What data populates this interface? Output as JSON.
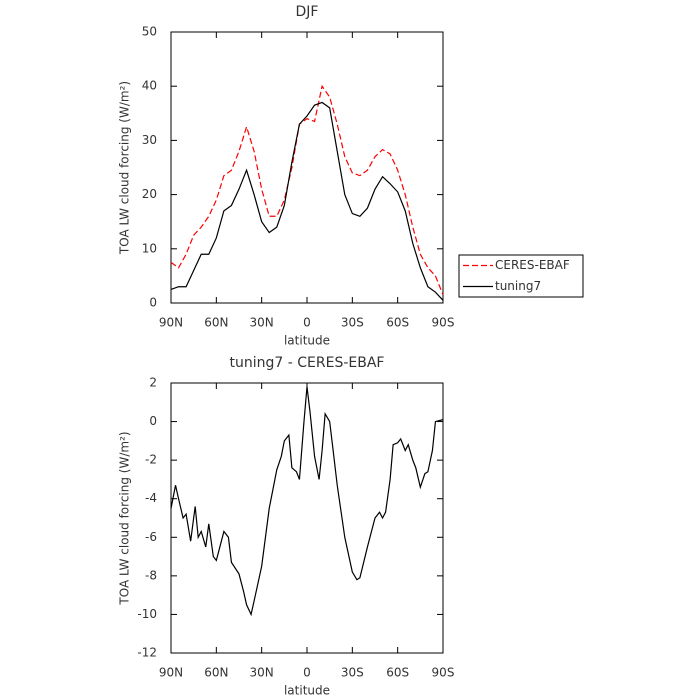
{
  "chart_data": [
    {
      "type": "line",
      "title": "DJF",
      "xlabel": "latitude",
      "ylabel": "TOA LW cloud forcing (W/m²)",
      "x": [
        90,
        85,
        80,
        75,
        70,
        65,
        60,
        55,
        50,
        45,
        40,
        35,
        30,
        25,
        20,
        15,
        10,
        5,
        0,
        -5,
        -10,
        -15,
        -20,
        -25,
        -30,
        -35,
        -40,
        -45,
        -50,
        -55,
        -60,
        -65,
        -70,
        -75,
        -80,
        -85,
        -90
      ],
      "series": [
        {
          "name": "CERES-EBAF",
          "color": "#ff0000",
          "linestyle": "dashed",
          "values": [
            7.5,
            6.5,
            9,
            12.5,
            14,
            16,
            19,
            23.5,
            24.5,
            28,
            32.5,
            28,
            21,
            16,
            16,
            19,
            25,
            33,
            34,
            33.5,
            40,
            38,
            33,
            27,
            24,
            23.5,
            24.5,
            27,
            28.3,
            27.5,
            24.5,
            20,
            14,
            9,
            6.5,
            5,
            1.5
          ]
        },
        {
          "name": "tuning7",
          "color": "#000000",
          "linestyle": "solid",
          "values": [
            2.5,
            3,
            3,
            6,
            9,
            9,
            12,
            17,
            18,
            21,
            24.5,
            20,
            15,
            13,
            14,
            18,
            26,
            33,
            34.5,
            36.5,
            37,
            36,
            28,
            20,
            16.5,
            16,
            17.5,
            21,
            23.3,
            22,
            20.5,
            17,
            11,
            6.5,
            3,
            2,
            0.5
          ]
        }
      ],
      "xlim": [
        90,
        -90
      ],
      "xticks": [
        {
          "value": 90,
          "label": "90N"
        },
        {
          "value": 60,
          "label": "60N"
        },
        {
          "value": 30,
          "label": "30N"
        },
        0,
        {
          "value": -30,
          "label": "30S"
        },
        {
          "value": -60,
          "label": "60S"
        },
        {
          "value": -90,
          "label": "90S"
        }
      ],
      "ylim": [
        0,
        50
      ],
      "yticks": [
        0,
        10,
        20,
        30,
        40,
        50
      ],
      "legend": "right"
    },
    {
      "type": "line",
      "title": "tuning7 - CERES-EBAF",
      "xlabel": "latitude",
      "ylabel": "TOA LW cloud forcing (W/m²)",
      "x": [
        90,
        87,
        85,
        82,
        80,
        77,
        74,
        72,
        70,
        67,
        65,
        62,
        60,
        57,
        55,
        52,
        50,
        45,
        42,
        40,
        37,
        35,
        30,
        25,
        20,
        17,
        15,
        12,
        10,
        7,
        5,
        2,
        0,
        -2,
        -5,
        -8,
        -10,
        -12,
        -15,
        -17,
        -20,
        -25,
        -30,
        -33,
        -35,
        -40,
        -45,
        -48,
        -50,
        -52,
        -55,
        -57,
        -60,
        -62,
        -65,
        -67,
        -70,
        -72,
        -75,
        -78,
        -80,
        -83,
        -85,
        -90
      ],
      "series": [
        {
          "color": "#000000",
          "linestyle": "solid",
          "values": [
            -4.5,
            -3.3,
            -4,
            -5,
            -4.8,
            -6.2,
            -4.4,
            -6,
            -5.7,
            -6.5,
            -5.3,
            -7,
            -7.2,
            -6.3,
            -5.7,
            -6,
            -7.3,
            -7.9,
            -8.8,
            -9.5,
            -10,
            -9.3,
            -7.5,
            -4.5,
            -2.5,
            -1.8,
            -1,
            -0.7,
            -2.4,
            -2.6,
            -3,
            0,
            1.8,
            0.5,
            -1.8,
            -3,
            -1.5,
            0.4,
            0,
            -1.3,
            -3.3,
            -6,
            -7.8,
            -8.2,
            -8.1,
            -6.5,
            -5,
            -4.7,
            -5,
            -4.7,
            -3,
            -1.2,
            -1.1,
            -0.9,
            -1.5,
            -1.2,
            -2,
            -2.4,
            -3.4,
            -2.7,
            -2.6,
            -1.5,
            0,
            0.1
          ]
        }
      ],
      "xlim": [
        90,
        -90
      ],
      "xticks": [
        {
          "value": 90,
          "label": "90N"
        },
        {
          "value": 60,
          "label": "60N"
        },
        {
          "value": 30,
          "label": "30N"
        },
        0,
        {
          "value": -30,
          "label": "30S"
        },
        {
          "value": -60,
          "label": "60S"
        },
        {
          "value": -90,
          "label": "90S"
        }
      ],
      "ylim": [
        -12,
        2
      ],
      "yticks": [
        -12,
        -10,
        -8,
        -6,
        -4,
        -2,
        0,
        2
      ]
    }
  ]
}
